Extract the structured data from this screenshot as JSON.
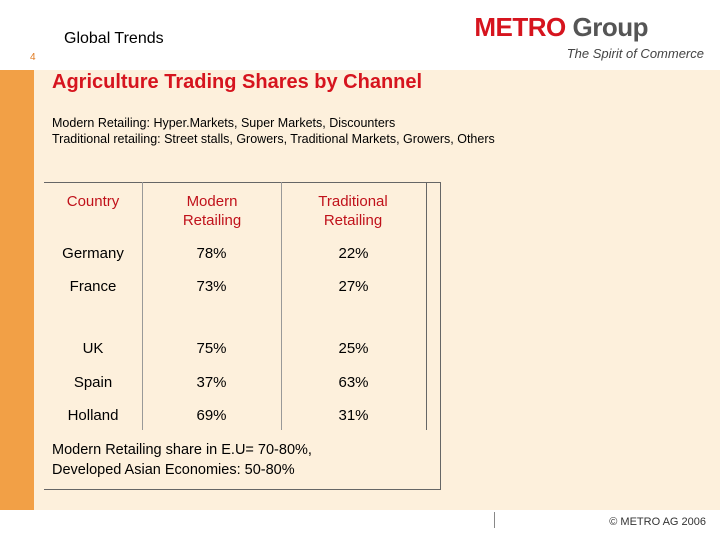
{
  "header": {
    "section_title": "Global Trends",
    "page_number": "4"
  },
  "logo": {
    "brand": "METRO",
    "group": "Group",
    "tagline": "The Spirit of Commerce"
  },
  "slide": {
    "title": "Agriculture Trading Shares by Channel",
    "definition_modern": "Modern Retailing: Hyper.Markets, Super Markets, Discounters",
    "definition_traditional": "Traditional retailing: Street stalls, Growers, Traditional Markets, Growers, Others"
  },
  "table": {
    "headers": [
      "Country",
      "Modern Retailing",
      "Traditional Retailing"
    ],
    "rows": [
      [
        "Germany",
        "78%",
        "22%"
      ],
      [
        "France",
        "73%",
        "27%"
      ],
      [
        "UK",
        "75%",
        "25%"
      ],
      [
        "Spain",
        "37%",
        "63%"
      ],
      [
        "Holland",
        "69%",
        "31%"
      ]
    ]
  },
  "note": {
    "line1": "Modern Retailing share in E.U= 70-80%,",
    "line2": "Developed Asian Economies: 50-80%"
  },
  "footer": {
    "copyright": "© METRO AG 2006"
  },
  "colors": {
    "accent_red": "#d6141e",
    "sidebar_orange": "#f2a046",
    "panel_bg": "#fdf0dc"
  }
}
